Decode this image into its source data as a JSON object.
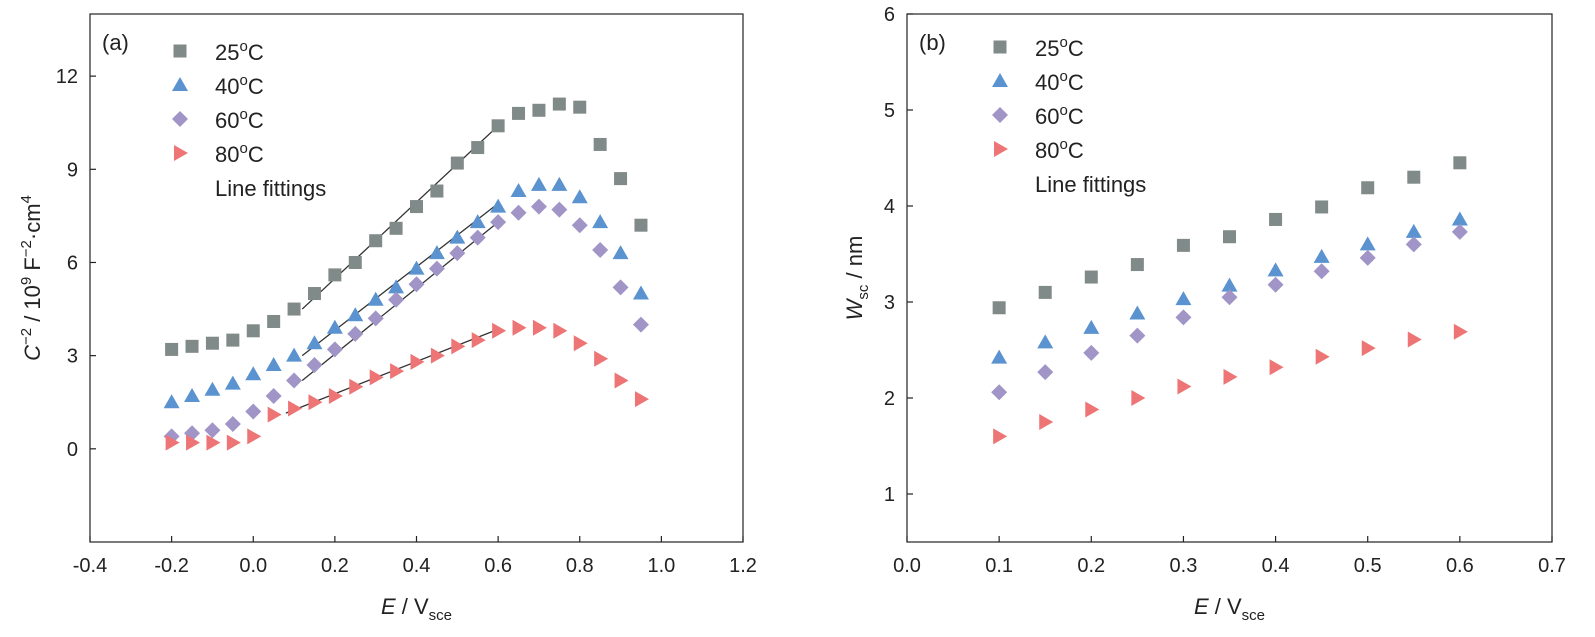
{
  "colors": {
    "s25": "#808a88",
    "s40": "#5a93cf",
    "s60": "#a195c8",
    "s80": "#ee7575",
    "line": "#333333",
    "axis": "#222222"
  },
  "chart_data": [
    {
      "type": "scatter",
      "panel_label": "(a)",
      "xlabel": {
        "italic": "E",
        "rest": " / V",
        "sub": "sce"
      },
      "ylabel": {
        "prefix": "C",
        "sup1": "−2",
        "middle": " / 10",
        "sup2": "9",
        "middle2": " F",
        "sup3": "−2",
        "middle3": "·cm",
        "sup4": "4"
      },
      "xlim": [
        -0.4,
        1.2
      ],
      "ylim": [
        -3,
        14
      ],
      "xticks": [
        -0.4,
        -0.2,
        0.0,
        0.2,
        0.4,
        0.6,
        0.8,
        1.0,
        1.2
      ],
      "xtick_labels": [
        "-0.4",
        "-0.2",
        "0.0",
        "0.2",
        "0.4",
        "0.6",
        "0.8",
        "1.0",
        "1.2"
      ],
      "yticks": [
        0,
        3,
        6,
        9,
        12
      ],
      "ytick_labels": [
        "0",
        "3",
        "6",
        "9",
        "12"
      ],
      "legend": [
        {
          "label": "25",
          "sup": "o",
          "unit": "C",
          "marker": "square",
          "color_key": "s25"
        },
        {
          "label": "40",
          "sup": "o",
          "unit": "C",
          "marker": "triangle-up",
          "color_key": "s40"
        },
        {
          "label": "60",
          "sup": "o",
          "unit": "C",
          "marker": "diamond",
          "color_key": "s60"
        },
        {
          "label": "80",
          "sup": "o",
          "unit": "C",
          "marker": "triangle-right",
          "color_key": "s80"
        },
        {
          "label": "Line fittings",
          "sup": "",
          "unit": "",
          "marker": "none",
          "color_key": "line"
        }
      ],
      "series": [
        {
          "name": "25oC",
          "marker": "square",
          "color_key": "s25",
          "x": [
            -0.2,
            -0.15,
            -0.1,
            -0.05,
            0.0,
            0.05,
            0.1,
            0.15,
            0.2,
            0.25,
            0.3,
            0.35,
            0.4,
            0.45,
            0.5,
            0.55,
            0.6,
            0.65,
            0.7,
            0.75,
            0.8,
            0.85,
            0.9,
            0.95
          ],
          "y": [
            3.2,
            3.3,
            3.4,
            3.5,
            3.8,
            4.1,
            4.5,
            5.0,
            5.6,
            6.0,
            6.7,
            7.1,
            7.8,
            8.3,
            9.2,
            9.7,
            10.4,
            10.8,
            10.9,
            11.1,
            11.0,
            9.8,
            8.7,
            7.2
          ]
        },
        {
          "name": "40oC",
          "marker": "triangle-up",
          "color_key": "s40",
          "x": [
            -0.2,
            -0.15,
            -0.1,
            -0.05,
            0.0,
            0.05,
            0.1,
            0.15,
            0.2,
            0.25,
            0.3,
            0.35,
            0.4,
            0.45,
            0.5,
            0.55,
            0.6,
            0.65,
            0.7,
            0.75,
            0.8,
            0.85,
            0.9,
            0.95
          ],
          "y": [
            1.5,
            1.7,
            1.9,
            2.1,
            2.4,
            2.7,
            3.0,
            3.4,
            3.9,
            4.3,
            4.8,
            5.2,
            5.8,
            6.3,
            6.8,
            7.3,
            7.8,
            8.3,
            8.5,
            8.5,
            8.1,
            7.3,
            6.3,
            5.0
          ]
        },
        {
          "name": "60oC",
          "marker": "diamond",
          "color_key": "s60",
          "x": [
            -0.2,
            -0.15,
            -0.1,
            -0.05,
            0.0,
            0.05,
            0.1,
            0.15,
            0.2,
            0.25,
            0.3,
            0.35,
            0.4,
            0.45,
            0.5,
            0.55,
            0.6,
            0.65,
            0.7,
            0.75,
            0.8,
            0.85,
            0.9,
            0.95
          ],
          "y": [
            0.4,
            0.5,
            0.6,
            0.8,
            1.2,
            1.7,
            2.2,
            2.7,
            3.2,
            3.7,
            4.2,
            4.8,
            5.3,
            5.8,
            6.3,
            6.8,
            7.3,
            7.6,
            7.8,
            7.7,
            7.2,
            6.4,
            5.2,
            4.0
          ]
        },
        {
          "name": "80oC",
          "marker": "triangle-right",
          "color_key": "s80",
          "x": [
            -0.2,
            -0.15,
            -0.1,
            -0.05,
            0.0,
            0.05,
            0.1,
            0.15,
            0.2,
            0.25,
            0.3,
            0.35,
            0.4,
            0.45,
            0.5,
            0.55,
            0.6,
            0.65,
            0.7,
            0.75,
            0.8,
            0.85,
            0.9,
            0.95
          ],
          "y": [
            0.2,
            0.2,
            0.2,
            0.2,
            0.4,
            1.1,
            1.3,
            1.5,
            1.7,
            2.0,
            2.3,
            2.5,
            2.8,
            3.0,
            3.3,
            3.5,
            3.8,
            3.9,
            3.9,
            3.8,
            3.4,
            2.9,
            2.2,
            1.6
          ]
        }
      ],
      "fit_lines": [
        {
          "x": [
            0.12,
            0.6
          ],
          "y": [
            4.5,
            10.4
          ],
          "color_key": "line"
        },
        {
          "x": [
            0.12,
            0.6
          ],
          "y": [
            3.0,
            7.9
          ],
          "color_key": "line"
        },
        {
          "x": [
            0.12,
            0.6
          ],
          "y": [
            2.2,
            7.3
          ],
          "color_key": "line"
        },
        {
          "x": [
            0.08,
            0.6
          ],
          "y": [
            1.15,
            3.85
          ],
          "color_key": "line"
        }
      ]
    },
    {
      "type": "scatter",
      "panel_label": "(b)",
      "xlabel": {
        "italic": "E",
        "rest": " / V",
        "sub": "sce"
      },
      "ylabel": {
        "italic": "W",
        "sub": "sc",
        "rest": " / nm"
      },
      "xlim": [
        0.0,
        0.7
      ],
      "ylim": [
        0.5,
        6
      ],
      "xticks": [
        0.0,
        0.1,
        0.2,
        0.3,
        0.4,
        0.5,
        0.6,
        0.7
      ],
      "xtick_labels": [
        "0.0",
        "0.1",
        "0.2",
        "0.3",
        "0.4",
        "0.5",
        "0.6",
        "0.7"
      ],
      "yticks": [
        1,
        2,
        3,
        4,
        5,
        6
      ],
      "ytick_labels": [
        "1",
        "2",
        "3",
        "4",
        "5",
        "6"
      ],
      "legend": [
        {
          "label": "25",
          "sup": "o",
          "unit": "C",
          "marker": "square",
          "color_key": "s25"
        },
        {
          "label": "40",
          "sup": "o",
          "unit": "C",
          "marker": "triangle-up",
          "color_key": "s40"
        },
        {
          "label": "60",
          "sup": "o",
          "unit": "C",
          "marker": "diamond",
          "color_key": "s60"
        },
        {
          "label": "80",
          "sup": "o",
          "unit": "C",
          "marker": "triangle-right",
          "color_key": "s80"
        },
        {
          "label": "Line fittings",
          "sup": "",
          "unit": "",
          "marker": "none",
          "color_key": "line"
        }
      ],
      "series": [
        {
          "name": "25oC",
          "marker": "square",
          "color_key": "s25",
          "x": [
            0.1,
            0.15,
            0.2,
            0.25,
            0.3,
            0.35,
            0.4,
            0.45,
            0.5,
            0.55,
            0.6
          ],
          "y": [
            2.94,
            3.1,
            3.26,
            3.39,
            3.59,
            3.68,
            3.86,
            3.99,
            4.19,
            4.3,
            4.45
          ]
        },
        {
          "name": "40oC",
          "marker": "triangle-up",
          "color_key": "s40",
          "x": [
            0.1,
            0.15,
            0.2,
            0.25,
            0.3,
            0.35,
            0.4,
            0.45,
            0.5,
            0.55,
            0.6
          ],
          "y": [
            2.42,
            2.58,
            2.73,
            2.88,
            3.03,
            3.17,
            3.33,
            3.47,
            3.6,
            3.73,
            3.86
          ]
        },
        {
          "name": "60oC",
          "marker": "diamond",
          "color_key": "s60",
          "x": [
            0.1,
            0.15,
            0.2,
            0.25,
            0.3,
            0.35,
            0.4,
            0.45,
            0.5,
            0.55,
            0.6
          ],
          "y": [
            2.06,
            2.27,
            2.47,
            2.65,
            2.84,
            3.05,
            3.18,
            3.32,
            3.46,
            3.6,
            3.73
          ]
        },
        {
          "name": "80oC",
          "marker": "triangle-right",
          "color_key": "s80",
          "x": [
            0.1,
            0.15,
            0.2,
            0.25,
            0.3,
            0.35,
            0.4,
            0.45,
            0.5,
            0.55,
            0.6
          ],
          "y": [
            1.6,
            1.75,
            1.88,
            2.0,
            2.12,
            2.22,
            2.32,
            2.43,
            2.52,
            2.61,
            2.69
          ]
        }
      ],
      "fit_lines": []
    }
  ]
}
